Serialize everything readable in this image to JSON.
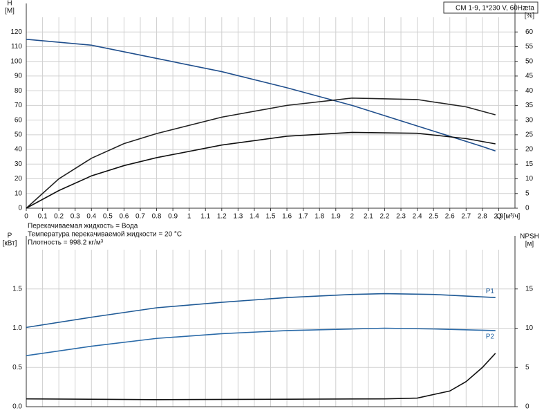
{
  "chart_data": [
    {
      "type": "line",
      "title": "CM 1-9, 1*230 V, 60Hz",
      "annotations": [
        "Перекачиваемая жидкость = Вода",
        "Температура перекачиваемой жидкости = 20 °C",
        "Плотность = 998.2 кг/м³"
      ],
      "x_label": "Q [м³/ч]",
      "y_label": [
        "H",
        "[M]"
      ],
      "y2_label": [
        "eta",
        "[%]"
      ],
      "xlim": [
        0,
        3.0
      ],
      "xticks": [
        0,
        0.1,
        0.2,
        0.3,
        0.4,
        0.5,
        0.6,
        0.7,
        0.8,
        0.9,
        1,
        1.1,
        1.2,
        1.3,
        1.4,
        1.5,
        1.6,
        1.7,
        1.8,
        1.9,
        2,
        2.1,
        2.2,
        2.3,
        2.4,
        2.5,
        2.6,
        2.7,
        2.8,
        2.9
      ],
      "ylim": [
        0,
        130
      ],
      "yticks": [
        0,
        10,
        20,
        30,
        40,
        50,
        60,
        70,
        80,
        90,
        100,
        110,
        120
      ],
      "y2lim": [
        0,
        65
      ],
      "y2ticks": [
        0,
        5,
        10,
        15,
        20,
        25,
        30,
        35,
        40,
        45,
        50,
        55,
        60
      ],
      "grid": true,
      "series": [
        {
          "color": "#1f4e8c",
          "x": [
            0,
            0.4,
            0.8,
            1.2,
            1.6,
            2.0,
            2.4,
            2.8,
            2.88
          ],
          "values": [
            115,
            111,
            102,
            93,
            82,
            70,
            56,
            42,
            39
          ]
        },
        {
          "color": "#222222",
          "axis": "y2",
          "x": [
            0,
            0.2,
            0.4,
            0.6,
            0.8,
            1.2,
            1.6,
            2.0,
            2.4,
            2.7,
            2.88
          ],
          "values": [
            0,
            10,
            17,
            22,
            25.4,
            31,
            35,
            37.5,
            37,
            34.5,
            31.8
          ]
        },
        {
          "color": "#111111",
          "axis": "y2",
          "x": [
            0,
            0.2,
            0.4,
            0.6,
            0.8,
            1.2,
            1.6,
            2.0,
            2.4,
            2.7,
            2.88
          ],
          "values": [
            0,
            6,
            11,
            14.5,
            17.2,
            21.5,
            24.5,
            25.8,
            25.5,
            23.7,
            21.9
          ]
        }
      ]
    },
    {
      "type": "line",
      "y_label": [
        "P",
        "[кВт]"
      ],
      "y2_label": [
        "NPSH",
        "[м]"
      ],
      "xlim": [
        0,
        3.0
      ],
      "ylim": [
        0,
        2.0
      ],
      "yticks": [
        {
          "value": 0,
          "label": "0.0"
        },
        0.5,
        {
          "value": 1,
          "label": "1.0"
        },
        1.5
      ],
      "y2lim": [
        0,
        20
      ],
      "y2ticks": [
        0,
        5,
        10,
        15
      ],
      "grid": true,
      "series": [
        {
          "name": "P1",
          "color": "#1f5a96",
          "x": [
            0,
            0.4,
            0.8,
            1.2,
            1.6,
            2.0,
            2.2,
            2.5,
            2.88
          ],
          "values": [
            1.01,
            1.14,
            1.26,
            1.33,
            1.39,
            1.43,
            1.44,
            1.43,
            1.39
          ]
        },
        {
          "name": "P2",
          "color": "#2a6aa8",
          "x": [
            0,
            0.4,
            0.8,
            1.2,
            1.6,
            2.0,
            2.2,
            2.5,
            2.88
          ],
          "values": [
            0.65,
            0.77,
            0.87,
            0.93,
            0.97,
            0.99,
            1.0,
            0.99,
            0.97
          ]
        },
        {
          "color": "#111111",
          "axis": "y2",
          "x": [
            0,
            0.8,
            1.6,
            2.2,
            2.4,
            2.6,
            2.7,
            2.8,
            2.88
          ],
          "values": [
            1.0,
            0.9,
            0.95,
            1.0,
            1.1,
            2.0,
            3.2,
            5.0,
            6.8
          ]
        }
      ]
    }
  ]
}
